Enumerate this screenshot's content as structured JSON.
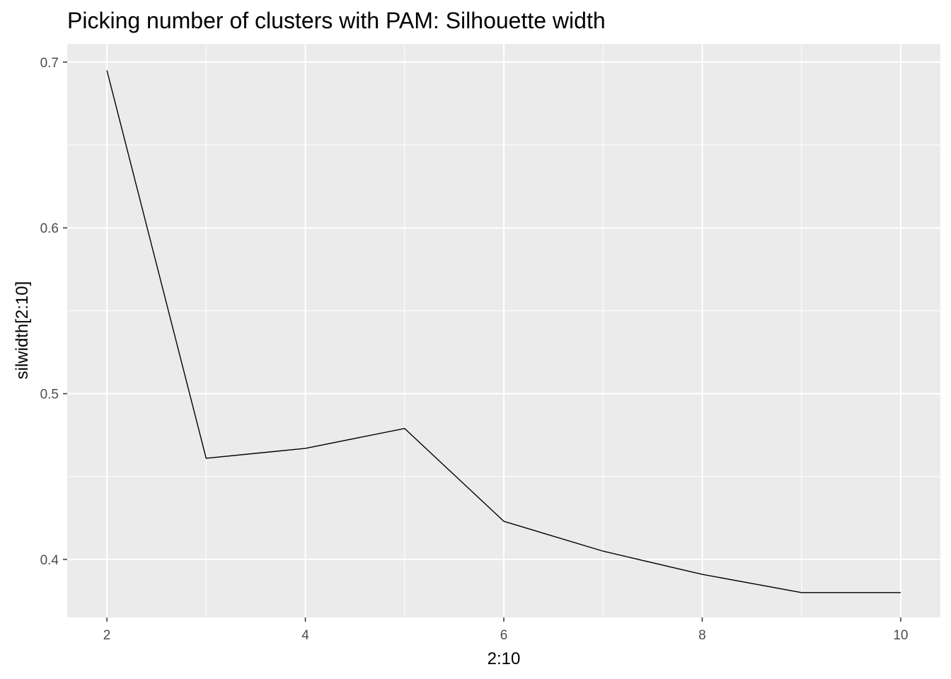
{
  "chart_data": {
    "type": "line",
    "title": "Picking number of clusters with PAM: Silhouette width",
    "xlabel": "2:10",
    "ylabel": "silwidth[2:10]",
    "x": [
      2,
      3,
      4,
      5,
      6,
      7,
      8,
      9,
      10
    ],
    "series": [
      {
        "values": [
          0.695,
          0.461,
          0.467,
          0.479,
          0.423,
          0.405,
          0.391,
          0.38,
          0.38
        ]
      }
    ],
    "xlim": [
      1.6,
      10.4
    ],
    "ylim": [
      0.365,
      0.711
    ],
    "x_major_ticks": [
      2,
      4,
      6,
      8,
      10
    ],
    "x_tick_labels": [
      "2",
      "4",
      "6",
      "8",
      "10"
    ],
    "x_minor_ticks": [
      3,
      5,
      7,
      9
    ],
    "y_major_ticks": [
      0.4,
      0.5,
      0.6,
      0.7
    ],
    "y_tick_labels": [
      "0.4",
      "0.5",
      "0.6",
      "0.7"
    ],
    "y_minor_ticks": [
      0.45,
      0.55,
      0.65
    ],
    "grid": true,
    "legend": "none",
    "colors": {
      "panel_background": "#ebebeb",
      "grid": "#ffffff",
      "line": "#000000",
      "tick_label": "#4d4d4d",
      "tick_mark": "#333333",
      "text": "#000000"
    }
  }
}
